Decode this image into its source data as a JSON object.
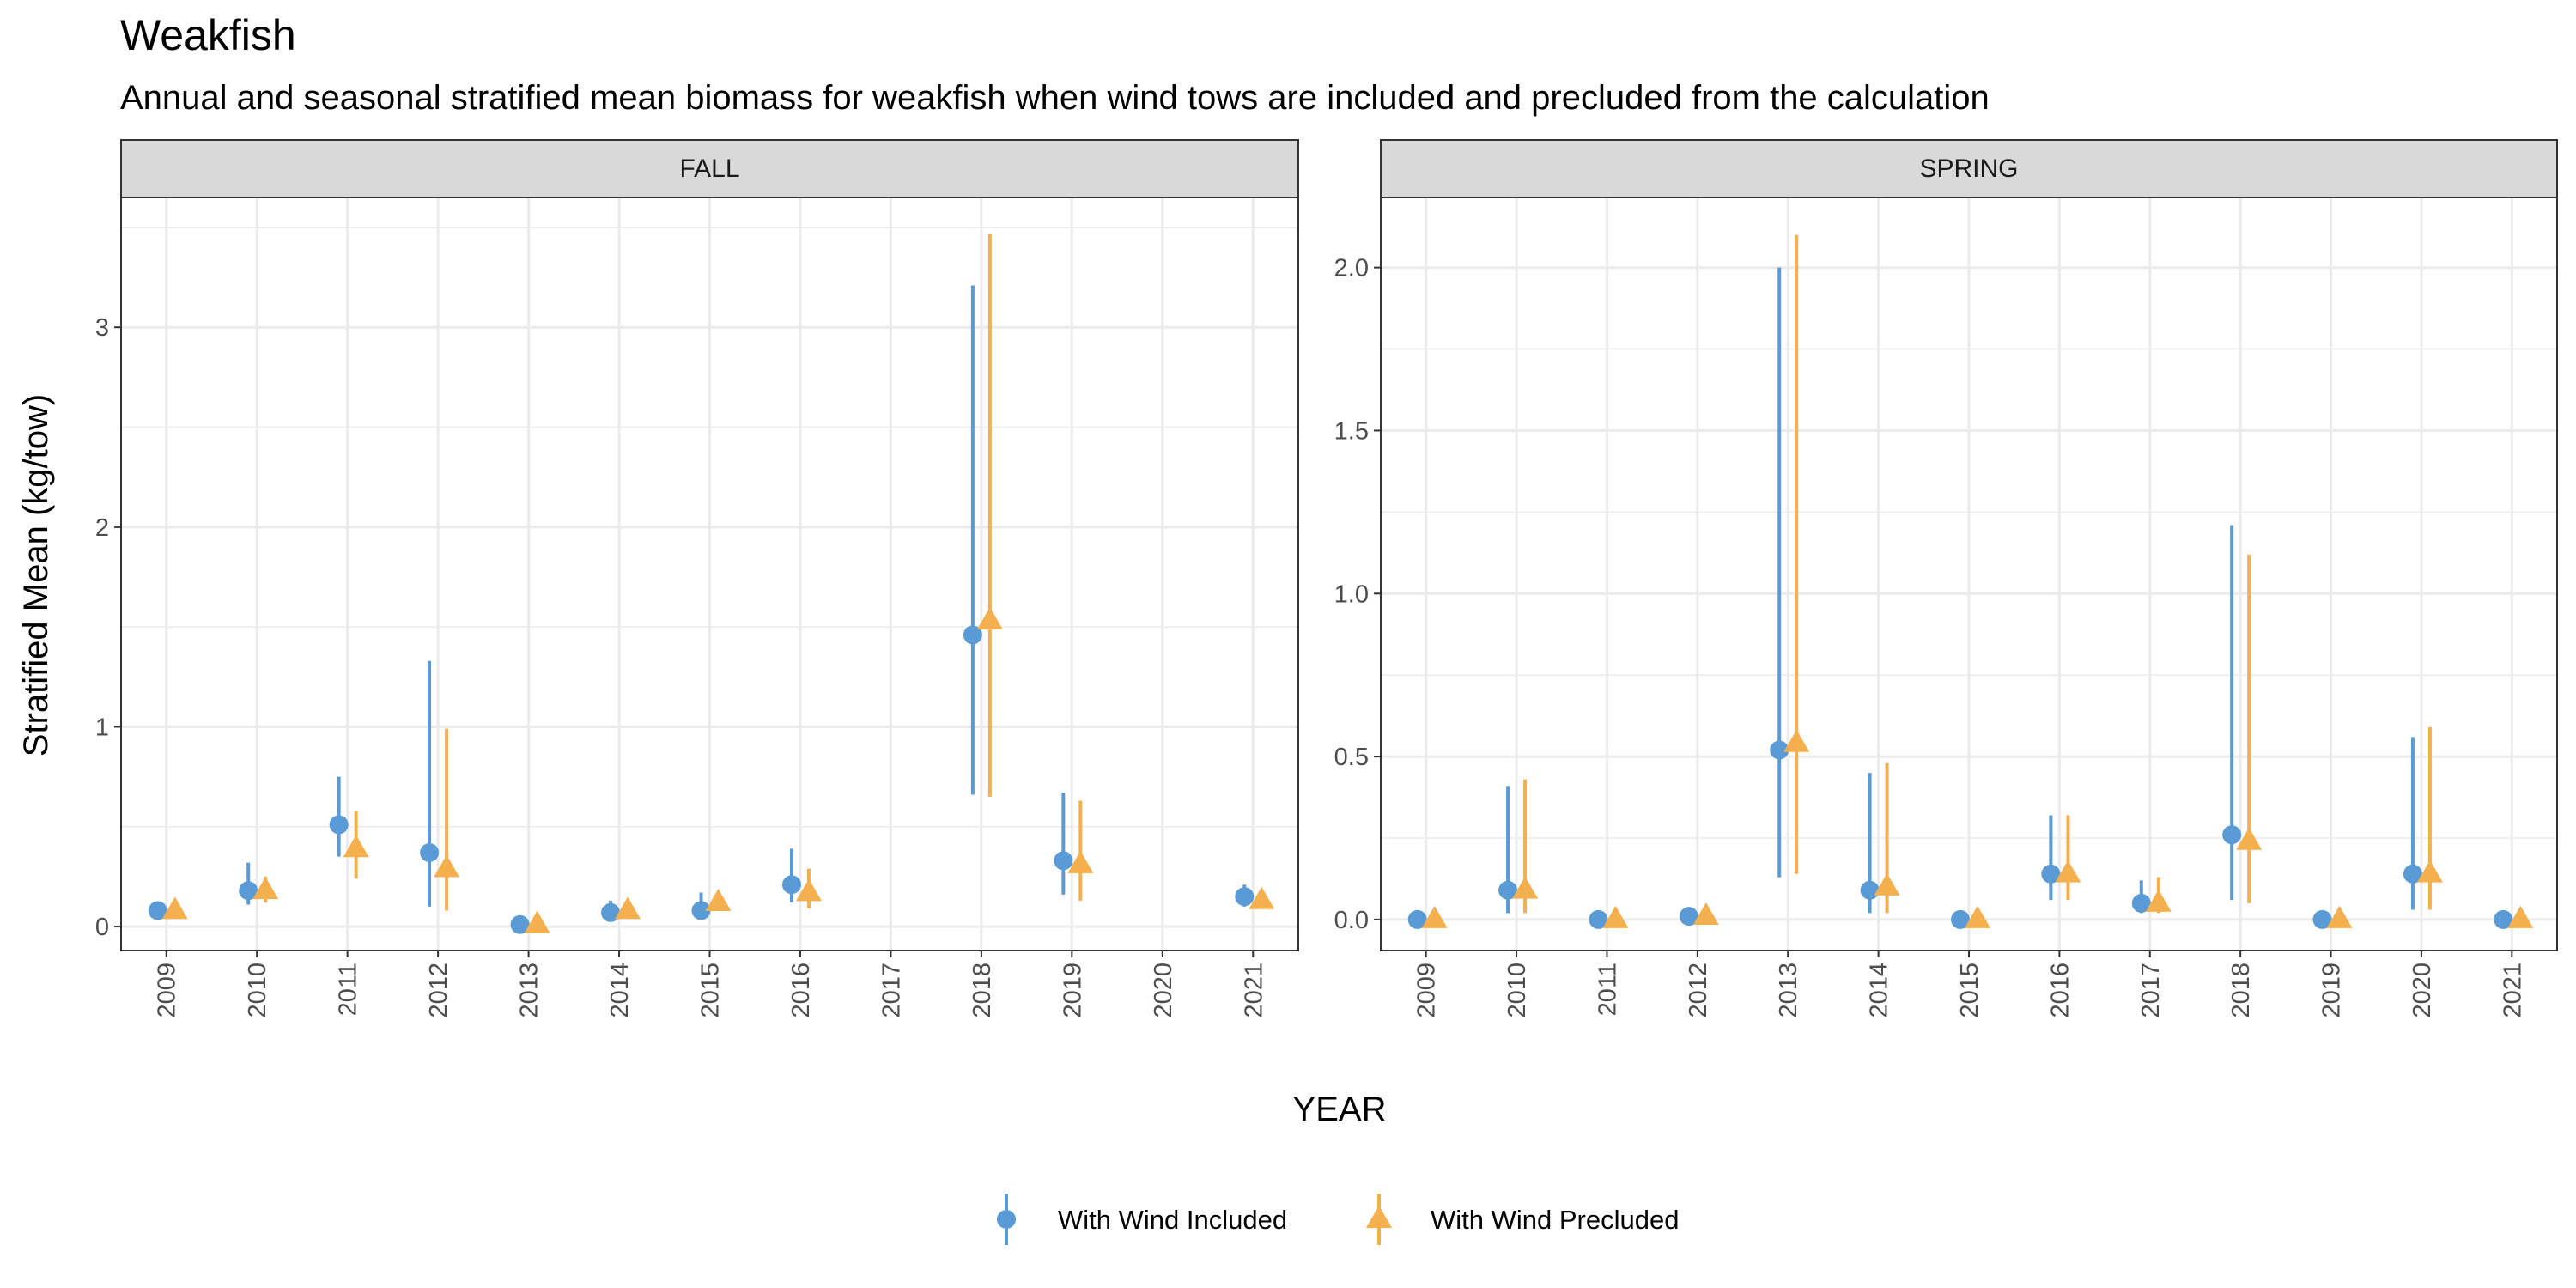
{
  "title": "Weakfish",
  "subtitle": "Annual and seasonal stratified mean biomass for weakfish when wind tows are included and precluded from the calculation",
  "xlabel": "YEAR",
  "ylabel": "Stratified Mean (kg/tow)",
  "legend": {
    "items": [
      {
        "label": "With Wind Included",
        "shape": "circle",
        "color": "#5B9BD5"
      },
      {
        "label": "With Wind Precluded",
        "shape": "triangle",
        "color": "#F4B04F"
      }
    ]
  },
  "colors": {
    "included": "#5B9BD5",
    "precluded": "#F4B04F",
    "strip_bg": "#D9D9D9",
    "grid": "#EBEBEB"
  },
  "chart_data": [
    {
      "type": "scatter",
      "panel": "FALL",
      "x_categories": [
        "2009",
        "2010",
        "2011",
        "2012",
        "2013",
        "2014",
        "2015",
        "2016",
        "2017",
        "2018",
        "2019",
        "2020",
        "2021"
      ],
      "ylim": [
        -0.12,
        3.65
      ],
      "y_ticks": [
        0,
        1,
        2,
        3
      ],
      "y_tick_labels": [
        "0",
        "1",
        "2",
        "3"
      ],
      "series": [
        {
          "name": "With Wind Included",
          "points": [
            {
              "x": "2009",
              "y": 0.08,
              "lo": 0.08,
              "hi": 0.08
            },
            {
              "x": "2010",
              "y": 0.18,
              "lo": 0.11,
              "hi": 0.32
            },
            {
              "x": "2011",
              "y": 0.51,
              "lo": 0.35,
              "hi": 0.75
            },
            {
              "x": "2012",
              "y": 0.37,
              "lo": 0.1,
              "hi": 1.33
            },
            {
              "x": "2013",
              "y": 0.01,
              "lo": 0.0,
              "hi": 0.01
            },
            {
              "x": "2014",
              "y": 0.07,
              "lo": 0.04,
              "hi": 0.13
            },
            {
              "x": "2015",
              "y": 0.08,
              "lo": 0.04,
              "hi": 0.17
            },
            {
              "x": "2016",
              "y": 0.21,
              "lo": 0.12,
              "hi": 0.39
            },
            {
              "x": "2018",
              "y": 1.46,
              "lo": 0.66,
              "hi": 3.21
            },
            {
              "x": "2019",
              "y": 0.33,
              "lo": 0.16,
              "hi": 0.67
            },
            {
              "x": "2021",
              "y": 0.15,
              "lo": 0.1,
              "hi": 0.21
            }
          ]
        },
        {
          "name": "With Wind Precluded",
          "points": [
            {
              "x": "2009",
              "y": 0.08,
              "lo": 0.08,
              "hi": 0.08
            },
            {
              "x": "2010",
              "y": 0.18,
              "lo": 0.12,
              "hi": 0.25
            },
            {
              "x": "2011",
              "y": 0.39,
              "lo": 0.24,
              "hi": 0.58
            },
            {
              "x": "2012",
              "y": 0.29,
              "lo": 0.08,
              "hi": 0.99
            },
            {
              "x": "2013",
              "y": 0.01,
              "lo": 0.0,
              "hi": 0.01
            },
            {
              "x": "2014",
              "y": 0.08,
              "lo": 0.05,
              "hi": 0.1
            },
            {
              "x": "2015",
              "y": 0.12,
              "lo": 0.08,
              "hi": 0.15
            },
            {
              "x": "2016",
              "y": 0.17,
              "lo": 0.09,
              "hi": 0.29
            },
            {
              "x": "2018",
              "y": 1.53,
              "lo": 0.65,
              "hi": 3.47
            },
            {
              "x": "2019",
              "y": 0.31,
              "lo": 0.13,
              "hi": 0.63
            },
            {
              "x": "2021",
              "y": 0.13,
              "lo": 0.11,
              "hi": 0.15
            }
          ]
        }
      ]
    },
    {
      "type": "scatter",
      "panel": "SPRING",
      "x_categories": [
        "2009",
        "2010",
        "2011",
        "2012",
        "2013",
        "2014",
        "2015",
        "2016",
        "2017",
        "2018",
        "2019",
        "2020",
        "2021"
      ],
      "ylim": [
        -0.095,
        2.215
      ],
      "y_ticks": [
        0,
        0.5,
        1,
        1.5,
        2
      ],
      "y_tick_labels": [
        "0.0",
        "0.5",
        "1.0",
        "1.5",
        "2.0"
      ],
      "series": [
        {
          "name": "With Wind Included",
          "points": [
            {
              "x": "2009",
              "y": 0.0,
              "lo": 0.0,
              "hi": 0.0
            },
            {
              "x": "2010",
              "y": 0.09,
              "lo": 0.02,
              "hi": 0.41
            },
            {
              "x": "2011",
              "y": 0.0,
              "lo": 0.0,
              "hi": 0.0
            },
            {
              "x": "2012",
              "y": 0.01,
              "lo": 0.01,
              "hi": 0.02
            },
            {
              "x": "2013",
              "y": 0.52,
              "lo": 0.13,
              "hi": 2.0
            },
            {
              "x": "2014",
              "y": 0.09,
              "lo": 0.02,
              "hi": 0.45
            },
            {
              "x": "2015",
              "y": 0.0,
              "lo": 0.0,
              "hi": 0.0
            },
            {
              "x": "2016",
              "y": 0.14,
              "lo": 0.06,
              "hi": 0.32
            },
            {
              "x": "2017",
              "y": 0.05,
              "lo": 0.02,
              "hi": 0.12
            },
            {
              "x": "2018",
              "y": 0.26,
              "lo": 0.06,
              "hi": 1.21
            },
            {
              "x": "2019",
              "y": 0.0,
              "lo": 0.0,
              "hi": 0.0
            },
            {
              "x": "2020",
              "y": 0.14,
              "lo": 0.03,
              "hi": 0.56
            },
            {
              "x": "2021",
              "y": 0.0,
              "lo": 0.0,
              "hi": 0.0
            }
          ]
        },
        {
          "name": "With Wind Precluded",
          "points": [
            {
              "x": "2009",
              "y": 0.0,
              "lo": 0.0,
              "hi": 0.0
            },
            {
              "x": "2010",
              "y": 0.09,
              "lo": 0.02,
              "hi": 0.43
            },
            {
              "x": "2011",
              "y": 0.0,
              "lo": 0.0,
              "hi": 0.0
            },
            {
              "x": "2012",
              "y": 0.01,
              "lo": 0.01,
              "hi": 0.02
            },
            {
              "x": "2013",
              "y": 0.54,
              "lo": 0.14,
              "hi": 2.1
            },
            {
              "x": "2014",
              "y": 0.1,
              "lo": 0.02,
              "hi": 0.48
            },
            {
              "x": "2015",
              "y": 0.0,
              "lo": 0.0,
              "hi": 0.0
            },
            {
              "x": "2016",
              "y": 0.14,
              "lo": 0.06,
              "hi": 0.32
            },
            {
              "x": "2017",
              "y": 0.05,
              "lo": 0.02,
              "hi": 0.13
            },
            {
              "x": "2018",
              "y": 0.24,
              "lo": 0.05,
              "hi": 1.12
            },
            {
              "x": "2019",
              "y": 0.0,
              "lo": 0.0,
              "hi": 0.0
            },
            {
              "x": "2020",
              "y": 0.14,
              "lo": 0.03,
              "hi": 0.59
            },
            {
              "x": "2021",
              "y": 0.0,
              "lo": 0.0,
              "hi": 0.0
            }
          ]
        }
      ]
    }
  ]
}
